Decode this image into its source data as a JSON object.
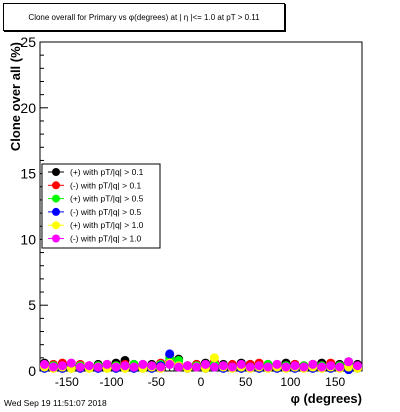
{
  "chart_data": {
    "type": "scatter",
    "title": "Clone  overall for Primary vs φ(degrees) at | η |<= 1.0 at pT > 0.11",
    "xlabel": "φ (degrees)",
    "ylabel": "Clone  over all (%)",
    "xlim": [
      -180,
      180
    ],
    "ylim": [
      0,
      25
    ],
    "x_ticks": [
      "-150",
      "-100",
      "-50",
      "0",
      "50",
      "100",
      "150"
    ],
    "y_ticks": [
      "0",
      "5",
      "10",
      "15",
      "20",
      "25"
    ],
    "legend_placement": "center-left",
    "grid": false,
    "series": [
      {
        "name": "(+) with pT/|q| > 0.1",
        "color": "#000000",
        "x": [
          -175,
          -165,
          -155,
          -145,
          -135,
          -125,
          -115,
          -105,
          -95,
          -85,
          -75,
          -65,
          -55,
          -45,
          -35,
          -25,
          -15,
          -5,
          5,
          15,
          25,
          35,
          45,
          55,
          65,
          75,
          85,
          95,
          105,
          115,
          125,
          135,
          145,
          155,
          165,
          175
        ],
        "y": [
          0.6,
          0.4,
          0.5,
          0.5,
          0.3,
          0.4,
          0.5,
          0.4,
          0.6,
          0.8,
          0.5,
          0.4,
          0.5,
          0.4,
          0.7,
          0.9,
          0.4,
          0.5,
          0.6,
          0.4,
          0.5,
          0.4,
          0.6,
          0.5,
          0.4,
          0.5,
          0.4,
          0.6,
          0.5,
          0.4,
          0.5,
          0.6,
          0.4,
          0.5,
          0.7,
          0.5
        ]
      },
      {
        "name": "(-) with pT/|q| > 0.1",
        "color": "#ff0000",
        "x": [
          -175,
          -165,
          -155,
          -145,
          -135,
          -125,
          -115,
          -105,
          -95,
          -85,
          -75,
          -65,
          -55,
          -45,
          -35,
          -25,
          -15,
          -5,
          5,
          15,
          25,
          35,
          45,
          55,
          65,
          75,
          85,
          95,
          105,
          115,
          125,
          135,
          145,
          155,
          165,
          175
        ],
        "y": [
          0.4,
          0.5,
          0.6,
          0.4,
          0.5,
          0.4,
          0.3,
          0.5,
          0.4,
          0.5,
          0.4,
          0.5,
          0.4,
          0.6,
          1.2,
          0.5,
          0.4,
          0.5,
          0.4,
          0.7,
          0.4,
          0.5,
          0.4,
          0.5,
          0.6,
          0.4,
          0.5,
          0.4,
          0.5,
          0.4,
          0.5,
          0.4,
          0.6,
          0.4,
          0.5,
          0.3
        ]
      },
      {
        "name": "(+) with pT/|q| > 0.5",
        "color": "#00ff00",
        "x": [
          -175,
          -165,
          -155,
          -145,
          -135,
          -125,
          -115,
          -105,
          -95,
          -85,
          -75,
          -65,
          -55,
          -45,
          -35,
          -25,
          -15,
          -5,
          5,
          15,
          25,
          35,
          45,
          55,
          65,
          75,
          85,
          95,
          105,
          115,
          125,
          135,
          145,
          155,
          165,
          175
        ],
        "y": [
          0.3,
          0.4,
          0.3,
          0.5,
          0.4,
          0.3,
          0.4,
          0.3,
          0.4,
          0.3,
          0.5,
          0.3,
          0.4,
          0.5,
          1.0,
          0.8,
          0.3,
          0.4,
          0.3,
          0.5,
          0.4,
          0.3,
          0.4,
          0.3,
          0.4,
          0.5,
          0.3,
          0.4,
          0.3,
          0.4,
          0.3,
          0.4,
          0.3,
          0.4,
          0.5,
          0.3
        ]
      },
      {
        "name": "(-) with pT/|q| > 0.5",
        "color": "#0000ff",
        "x": [
          -175,
          -165,
          -155,
          -145,
          -135,
          -125,
          -115,
          -105,
          -95,
          -85,
          -75,
          -65,
          -55,
          -45,
          -35,
          -25,
          -15,
          -5,
          5,
          15,
          25,
          35,
          45,
          55,
          65,
          75,
          85,
          95,
          105,
          115,
          125,
          135,
          145,
          155,
          165,
          175
        ],
        "y": [
          0.2,
          0.3,
          0.2,
          0.3,
          0.2,
          0.3,
          0.2,
          0.3,
          0.2,
          0.3,
          0.2,
          0.3,
          0.2,
          0.4,
          1.3,
          0.4,
          0.2,
          0.3,
          0.2,
          0.3,
          0.2,
          0.3,
          0.2,
          0.3,
          0.2,
          0.3,
          0.2,
          0.3,
          0.2,
          0.3,
          0.2,
          0.3,
          0.2,
          0.3,
          0.1,
          0.2
        ]
      },
      {
        "name": "(+) with pT/|q| > 1.0",
        "color": "#ffff00",
        "x": [
          -175,
          -165,
          -155,
          -145,
          -135,
          -125,
          -115,
          -105,
          -95,
          -85,
          -75,
          -65,
          -55,
          -45,
          -35,
          -25,
          -15,
          -5,
          5,
          15,
          25,
          35,
          45,
          55,
          65,
          75,
          85,
          95,
          105,
          115,
          125,
          135,
          145,
          155,
          165,
          175
        ],
        "y": [
          0.3,
          0.2,
          0.3,
          0.2,
          0.3,
          0.2,
          0.3,
          0.2,
          0.3,
          0.2,
          0.3,
          0.2,
          0.3,
          0.2,
          0.6,
          0.4,
          0.2,
          0.3,
          0.2,
          1.0,
          0.3,
          0.2,
          0.3,
          0.2,
          0.3,
          0.2,
          0.3,
          0.2,
          0.3,
          0.2,
          0.3,
          0.2,
          0.3,
          0.2,
          0.3,
          0.2
        ]
      },
      {
        "name": "(-) with pT/|q| > 1.0",
        "color": "#ff00ff",
        "x": [
          -175,
          -165,
          -155,
          -145,
          -135,
          -125,
          -115,
          -105,
          -95,
          -85,
          -75,
          -65,
          -55,
          -45,
          -35,
          -25,
          -15,
          -5,
          5,
          15,
          25,
          35,
          45,
          55,
          65,
          75,
          85,
          95,
          105,
          115,
          125,
          135,
          145,
          155,
          165,
          175
        ],
        "y": [
          0.5,
          0.3,
          0.4,
          0.6,
          0.3,
          0.4,
          0.3,
          0.5,
          0.3,
          0.4,
          0.3,
          0.5,
          0.4,
          0.3,
          0.5,
          0.3,
          0.4,
          0.3,
          0.5,
          0.3,
          0.4,
          0.3,
          0.5,
          0.3,
          0.4,
          0.3,
          0.5,
          0.3,
          0.4,
          0.3,
          0.5,
          0.3,
          0.4,
          0.3,
          0.7,
          0.4
        ]
      }
    ]
  },
  "footer": {
    "timestamp": "Wed Sep 19 11:51:07 2018"
  }
}
